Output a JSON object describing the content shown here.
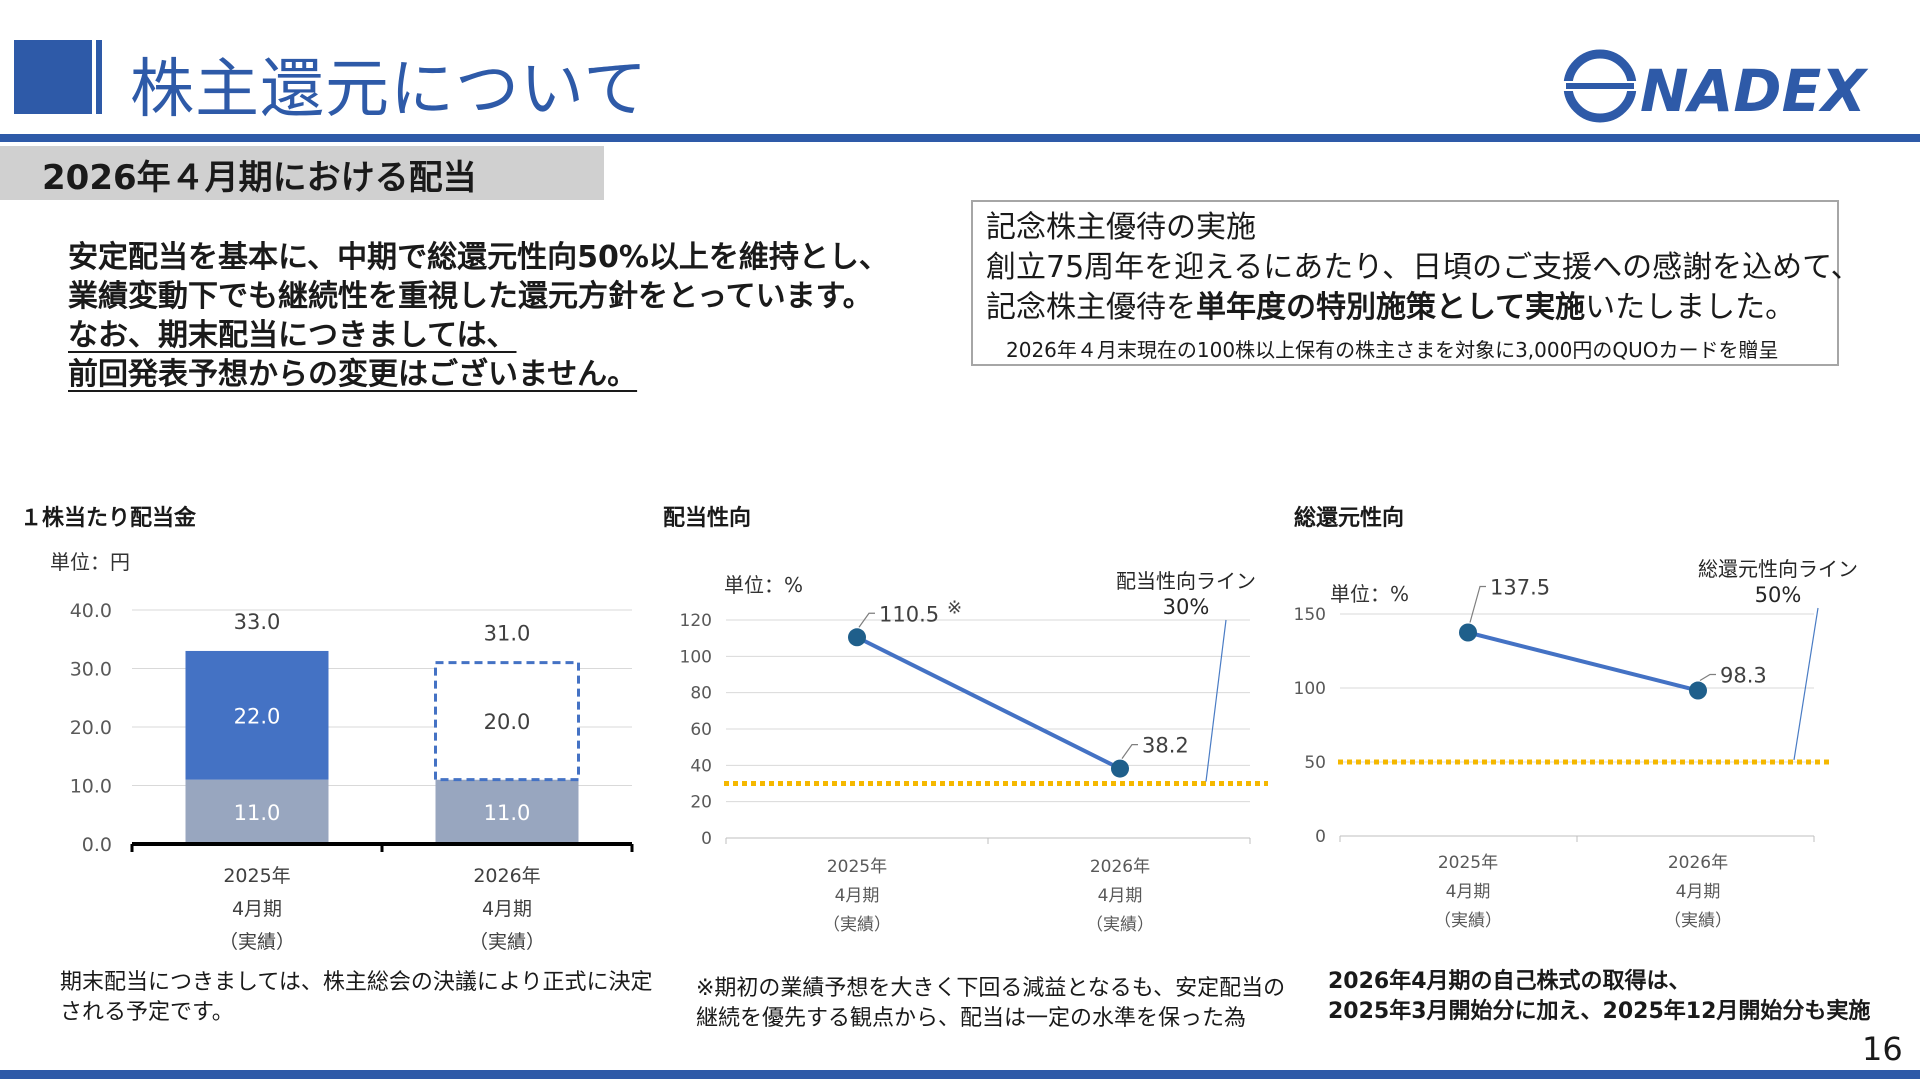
{
  "header": {
    "title": "株主還元について",
    "logo_text": "NADEX"
  },
  "subheader": "2026年４月期における配当",
  "policy": {
    "line1": "安定配当を基本に、中期で総還元性向50%以上を維持とし、",
    "line2": "業績変動下でも継続性を重視した還元方針をとっています。",
    "line3": "なお、期末配当につきましては、",
    "line4": "前回発表予想からの変更はございません。"
  },
  "benefit": {
    "title": "記念株主優待の実施",
    "line1": "創立75周年を迎えるにあたり、日頃のご支援への感謝を込めて、",
    "line2_pre": "記念株主優待を",
    "line2_bold": "単年度の特別施策として実施",
    "line2_post": "いたしました。",
    "note": "2026年４月末現在の100株以上保有の株主さまを対象に3,000円のQUOカードを贈呈"
  },
  "sections": {
    "dividend_title": "１株当たり配当金",
    "payout_title": "配当性向",
    "total_title": "総還元性向"
  },
  "notes": {
    "dividend_line1": "期末配当につきましては、株主総会の決議により正式に決定",
    "dividend_line2": "される予定です。",
    "payout_line1": "※期初の業績予想を大きく下回る減益となるも、安定配当の",
    "payout_line2": "継続を優先する観点から、配当は一定の水準を保った為",
    "total_line1": "2026年4月期の自己株式の取得は、",
    "total_line2": "2025年3月開始分に加え、2025年12月開始分も実施"
  },
  "page_number": "16",
  "colors": {
    "brand": "#2e5aa8",
    "interim": "#98a6bf",
    "year_end": "#4472c4",
    "line": "#4472c4",
    "point": "#1f5f8b",
    "threshold": "#f5b800"
  },
  "chart_data": [
    {
      "type": "bar",
      "unit_label": "単位：円",
      "categories": [
        [
          "2025年",
          "4月期",
          "（実績）"
        ],
        [
          "2026年",
          "4月期",
          "（実績）"
        ]
      ],
      "series": [
        {
          "values": [
            11.0,
            11.0
          ],
          "labels": [
            "11.0",
            "11.0"
          ]
        },
        {
          "values": [
            22.0,
            20.0
          ],
          "labels": [
            "22.0",
            "20.0"
          ]
        }
      ],
      "totals": [
        "33.0",
        "31.0"
      ],
      "y_ticks": [
        "0.0",
        "10.0",
        "20.0",
        "30.0",
        "40.0"
      ],
      "ylim": [
        0,
        40
      ],
      "grid": true
    },
    {
      "type": "line",
      "unit_label": "単位：%",
      "categories": [
        [
          "2025年",
          "4月期",
          "（実績）"
        ],
        [
          "2026年",
          "4月期",
          "（実績）"
        ]
      ],
      "values": [
        110.5,
        38.2
      ],
      "labels": [
        "110.5",
        "38.2"
      ],
      "label_mark": "※",
      "y_ticks": [
        "0",
        "20",
        "40",
        "60",
        "80",
        "100",
        "120"
      ],
      "ylim": [
        0,
        120
      ],
      "grid": true,
      "reference_line": {
        "value": 30,
        "label_line1": "配当性向ライン",
        "label_line2": "30%"
      }
    },
    {
      "type": "line",
      "unit_label": "単位：%",
      "categories": [
        [
          "2025年",
          "4月期",
          "（実績）"
        ],
        [
          "2026年",
          "4月期",
          "（実績）"
        ]
      ],
      "values": [
        137.5,
        98.3
      ],
      "labels": [
        "137.5",
        "98.3"
      ],
      "y_ticks": [
        "0",
        "50",
        "100",
        "150"
      ],
      "ylim": [
        0,
        150
      ],
      "grid": true,
      "reference_line": {
        "value": 50,
        "label_line1": "総還元性向ライン",
        "label_line2": "50%"
      }
    }
  ]
}
